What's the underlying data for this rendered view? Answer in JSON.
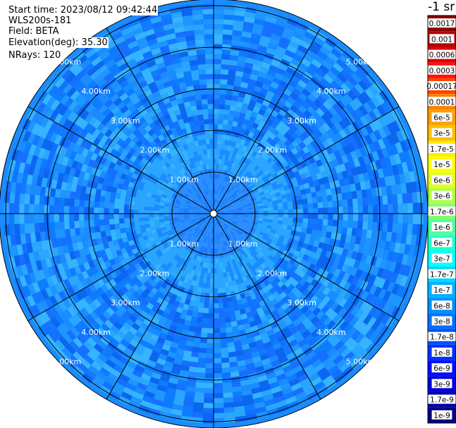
{
  "header": {
    "start_time": "Start time: 2023/08/12 09:42:44",
    "instrument": "WLS200s-181",
    "field": "Field: BETA",
    "elevation": "Elevation(deg): 35.30",
    "nrays": "NRays: 120"
  },
  "chart_data": {
    "type": "heatmap",
    "projection": "polar",
    "field": "BETA",
    "units_title": "-1 sr",
    "nrays": 120,
    "elevation_deg": 35.3,
    "range_rings_km": [
      "1.00km",
      "2.00km",
      "3.00km",
      "4.00km",
      "5.00km"
    ],
    "radial_lines_every_deg": 30,
    "colorbar": {
      "labels": [
        "0.0017",
        "0.001",
        "0.0006",
        "0.0003",
        "0.00017",
        "0.0001",
        "6e-5",
        "3e-5",
        "1.7e-5",
        "1e-5",
        "6e-6",
        "3e-6",
        "1.7e-6",
        "1e-6",
        "6e-7",
        "3e-7",
        "1.7e-7",
        "1e-7",
        "6e-8",
        "3e-8",
        "1.7e-8",
        "1e-8",
        "6e-9",
        "3e-9",
        "1.7e-9",
        "1e-9"
      ],
      "colors": [
        "#8b0000",
        "#b40000",
        "#dc0000",
        "#ff1010",
        "#ff4500",
        "#ff7f00",
        "#ff9f00",
        "#ffbf00",
        "#ffef00",
        "#ffff00",
        "#e0ff20",
        "#b0ff40",
        "#80ff70",
        "#50ffa0",
        "#20ffd0",
        "#00ffff",
        "#00d8ff",
        "#00b0ff",
        "#0090ff",
        "#0070ff",
        "#0050ff",
        "#0030ff",
        "#0010ff",
        "#0000dd",
        "#0000aa",
        "#000080"
      ]
    },
    "dominant_value_range": [
      "3e-8",
      "1e-8"
    ]
  }
}
